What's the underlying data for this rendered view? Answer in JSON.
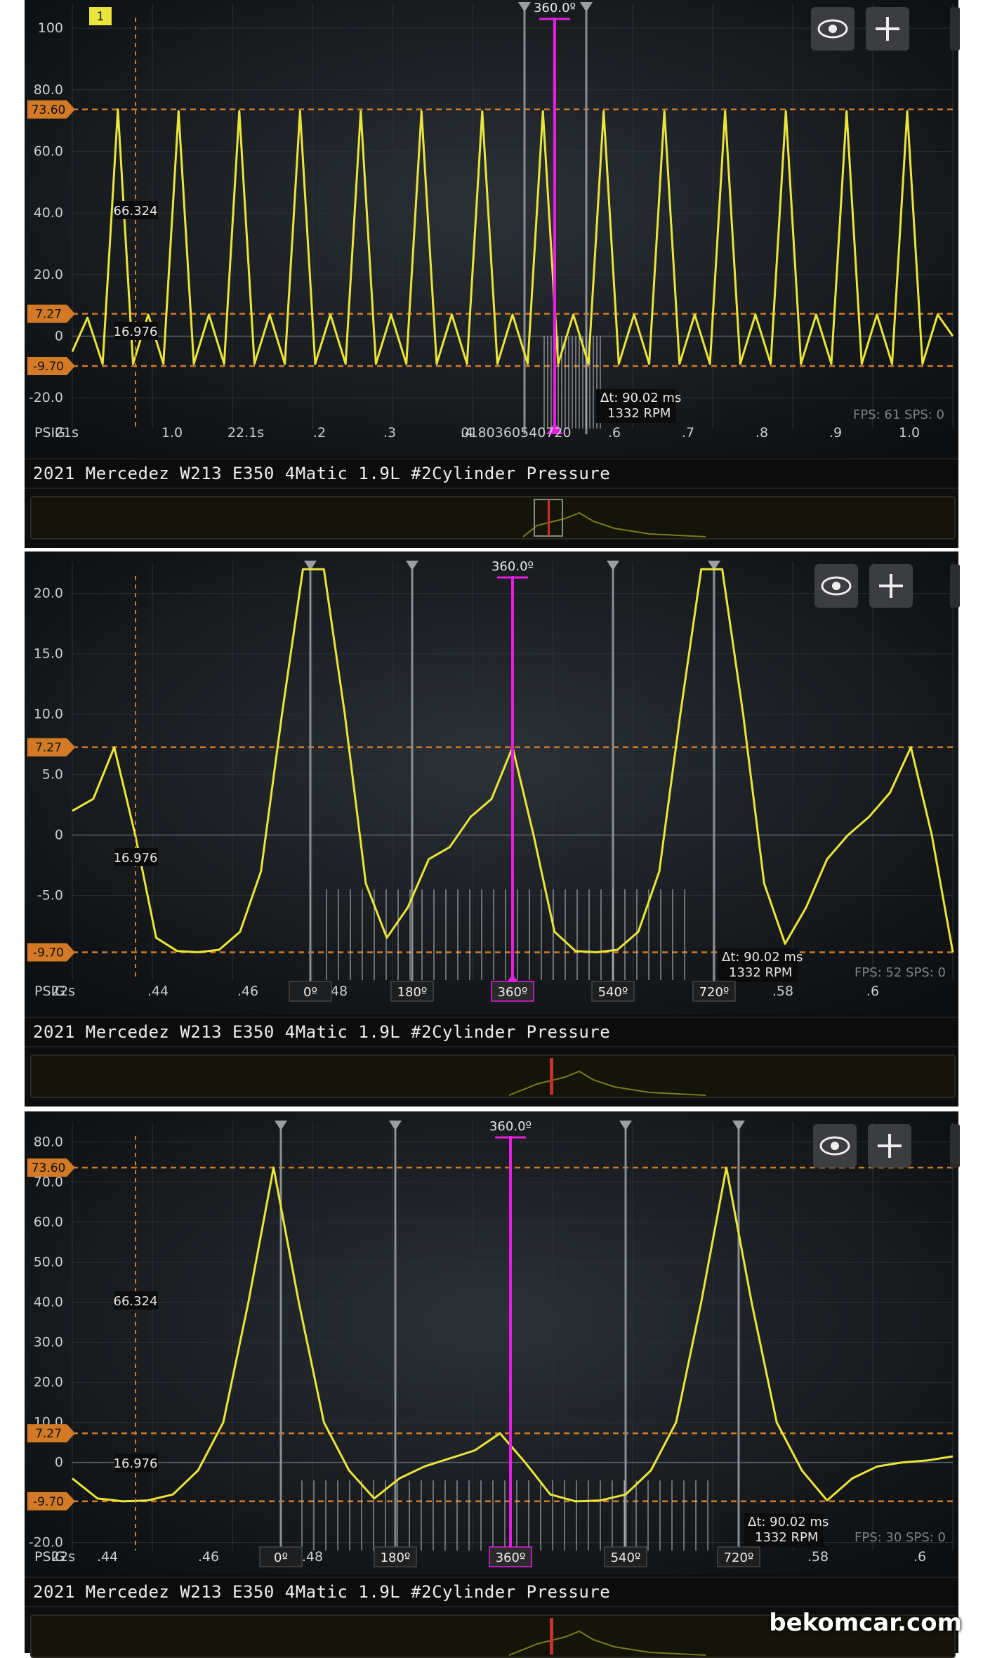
{
  "watermark": "bekomcar.com",
  "colors": {
    "trace": "#e9e53a",
    "cursor": "#e41fe0",
    "ref": "#d27a26",
    "grid": "#2a3036"
  },
  "panels": [
    {
      "id": "p1",
      "title": "2021 Mercedez W213 E350 4Matic 1.9L #2Cylinder Pressure",
      "channel_badge": "1",
      "unit": "PSIG",
      "y_ticks": [
        "100",
        "80.0",
        "60.0",
        "40.0",
        "20.0",
        "0",
        "-20.0"
      ],
      "ref_markers": [
        "73.60",
        "7.27",
        "-9.70"
      ],
      "x_ticks": [
        "21s",
        "1.0",
        "22.1s",
        ".2",
        ".3",
        ".4",
        "0180360540720",
        ".6",
        ".7",
        ".8",
        ".9",
        "1.0"
      ],
      "cursor_label": "360.0º",
      "value_labels": [
        "66.324",
        "16.976"
      ],
      "delta": "Δt: 90.02 ms",
      "rpm": "1332 RPM",
      "fps": "FPS: 61  SPS: 0"
    },
    {
      "id": "p2",
      "title": "2021 Mercedez W213 E350 4Matic 1.9L #2Cylinder Pressure",
      "unit": "PSIG",
      "y_ticks": [
        "20.0",
        "15.0",
        "10.0",
        "5.0",
        "0",
        "-5.0"
      ],
      "ref_markers": [
        "7.27",
        "-9.70"
      ],
      "x_ticks": [
        "22s",
        ".44",
        ".46",
        ".48",
        ".58",
        ".6"
      ],
      "degree_markers": [
        "0º",
        "180º",
        "360º",
        "540º",
        "720º"
      ],
      "cursor_label": "360.0º",
      "value_labels": [
        "16.976"
      ],
      "delta": "Δt: 90.02 ms",
      "rpm": "1332 RPM",
      "fps": "FPS: 52  SPS: 0"
    },
    {
      "id": "p3",
      "title": "2021 Mercedez W213 E350 4Matic 1.9L #2Cylinder Pressure",
      "unit": "PSIG",
      "y_ticks": [
        "80.0",
        "70.0",
        "60.0",
        "50.0",
        "40.0",
        "30.0",
        "20.0",
        "10.0",
        "0",
        "-20.0"
      ],
      "ref_markers": [
        "73.60",
        "7.27",
        "-9.70"
      ],
      "x_ticks": [
        "22s",
        ".44",
        ".46",
        ".48",
        ".58",
        ".6"
      ],
      "degree_markers": [
        "0º",
        "180º",
        "360º",
        "540º",
        "720º"
      ],
      "cursor_label": "360.0º",
      "value_labels": [
        "66.324",
        "16.976"
      ],
      "delta": "Δt: 90.02 ms",
      "rpm": "1332 RPM",
      "fps": "FPS: 30  SPS: 0"
    }
  ],
  "chart_data": [
    {
      "type": "line",
      "title": "2021 Mercedez W213 E350 4Matic 1.9L #2Cylinder Pressure",
      "ylabel": "PSIG",
      "ylim": [
        -30,
        108
      ],
      "reference_lines": [
        73.6,
        7.27,
        -9.7
      ],
      "series": [
        {
          "values": [
            -5.0,
            6.0,
            -9.0,
            73.6,
            -9.0,
            7.0,
            -9.0,
            73.0,
            -9.0,
            7.0,
            -9.0,
            73.0,
            -9.0,
            7.0,
            -9.0,
            73.0,
            -9.0,
            7.0,
            -9.0,
            73.0,
            -9.0,
            7.0,
            -9.0,
            73.0,
            -9.0,
            7.0,
            -9.0,
            73.0,
            -9.0,
            7.0,
            -9.0,
            73.0,
            -9.0,
            7.0,
            -9.0,
            73.0,
            -9.0,
            7.0,
            -9.0,
            73.0,
            -9.0,
            7.0,
            -9.0,
            73.0,
            -9.0,
            7.0,
            -9.0,
            73.0,
            -9.0,
            7.0,
            -9.0,
            73.0,
            -9.0,
            7.0,
            -9.0,
            73.0,
            -9.0,
            7.0,
            0.0
          ]
        }
      ]
    },
    {
      "type": "line",
      "title": "2021 Mercedez W213 E350 4Matic 1.9L #2Cylinder Pressure",
      "ylabel": "PSIG",
      "ylim": [
        -12,
        22
      ],
      "reference_lines": [
        7.27,
        -9.7
      ],
      "degree_markers": [
        0,
        180,
        360,
        540,
        720
      ],
      "series": [
        {
          "values": [
            2.0,
            3.0,
            7.27,
            0,
            -8.5,
            -9.6,
            -9.7,
            -9.5,
            -8.0,
            -3.0,
            10.0,
            22.0,
            22.0,
            10.0,
            -4.0,
            -8.5,
            -6.0,
            -2.0,
            -1.0,
            1.5,
            3.0,
            7.27,
            0.0,
            -8.0,
            -9.6,
            -9.7,
            -9.5,
            -8.0,
            -3.0,
            10.0,
            22.0,
            22.0,
            10.0,
            -4.0,
            -9.0,
            -6.0,
            -2.0,
            0.0,
            1.5,
            3.5,
            7.27,
            0.0,
            -9.7
          ]
        }
      ]
    },
    {
      "type": "line",
      "title": "2021 Mercedez W213 E350 4Matic 1.9L #2Cylinder Pressure",
      "ylabel": "PSIG",
      "ylim": [
        -22,
        85
      ],
      "reference_lines": [
        73.6,
        7.27,
        -9.7
      ],
      "degree_markers": [
        0,
        180,
        360,
        540,
        720
      ],
      "series": [
        {
          "values": [
            -4.0,
            -9.0,
            -9.7,
            -9.5,
            -8.0,
            -2.0,
            10.0,
            40.0,
            73.6,
            40.0,
            10.0,
            -2.0,
            -9.0,
            -4.0,
            -1.0,
            1.0,
            3.0,
            7.27,
            0.0,
            -8.0,
            -9.7,
            -9.5,
            -8.0,
            -2.0,
            10.0,
            40.0,
            73.6,
            40.0,
            10.0,
            -2.0,
            -9.5,
            -4.0,
            -1.0,
            0.0,
            0.5,
            1.5
          ]
        }
      ]
    }
  ]
}
